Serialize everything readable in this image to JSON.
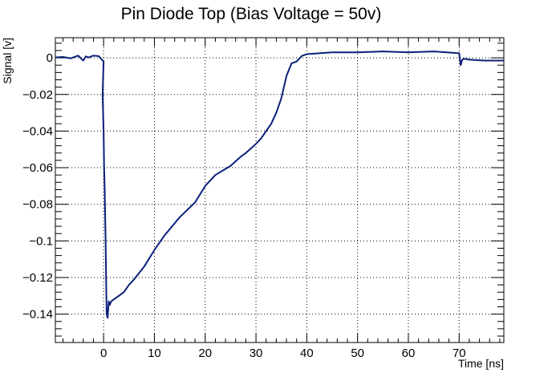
{
  "chart_data": {
    "type": "line",
    "title": "Pin Diode Top (Bias Voltage = 50v)",
    "xlabel": "Time [ns]",
    "ylabel": "Signal [v]",
    "xlim": [
      -9.5,
      78.8
    ],
    "ylim": [
      -0.1555,
      0.011
    ],
    "x_ticks": [
      0,
      10,
      20,
      30,
      40,
      50,
      60,
      70
    ],
    "y_ticks": [
      0,
      -0.02,
      -0.04,
      -0.06,
      -0.08,
      -0.1,
      -0.12,
      -0.14
    ],
    "y_tick_labels": [
      "0",
      "−0.02",
      "−0.04",
      "−0.06",
      "−0.08",
      "−0.1",
      "−0.12",
      "−0.14"
    ],
    "grid": true,
    "line_color": "#0b1f7a",
    "series": [
      {
        "x": [
          -9.5,
          -8,
          -6.5,
          -5,
          -4,
          -3.5,
          -3,
          -2,
          -1,
          0,
          -0.2,
          0,
          0.1,
          0.2,
          0.3,
          0.4,
          0.5,
          0.6,
          0.8,
          1,
          1.2,
          1.5,
          2,
          3,
          4,
          5,
          6,
          8,
          10,
          12,
          15,
          18,
          20,
          22,
          25,
          27,
          28,
          30,
          31,
          32,
          33,
          34,
          35,
          36,
          37,
          38,
          39,
          40,
          45,
          50,
          55,
          60,
          65,
          70,
          70.3,
          70.6,
          71,
          72,
          75,
          78.8
        ],
        "y": [
          0.0002,
          0.0005,
          -0.0003,
          0.0012,
          -0.0015,
          0.0008,
          0.0002,
          0.0012,
          0.001,
          -0.002,
          -0.02,
          -0.04,
          -0.06,
          -0.07,
          -0.085,
          -0.1,
          -0.122,
          -0.14,
          -0.142,
          -0.133,
          -0.135,
          -0.133,
          -0.132,
          -0.13,
          -0.128,
          -0.124,
          -0.121,
          -0.114,
          -0.105,
          -0.097,
          -0.087,
          -0.079,
          -0.07,
          -0.064,
          -0.059,
          -0.054,
          -0.052,
          -0.047,
          -0.044,
          -0.04,
          -0.036,
          -0.03,
          -0.022,
          -0.01,
          -0.003,
          -0.002,
          0.001,
          0.002,
          0.003,
          0.003,
          0.0035,
          0.003,
          0.0035,
          0.0025,
          -0.004,
          -0.001,
          -0.0005,
          -0.001,
          -0.0015,
          -0.0015
        ]
      }
    ]
  }
}
